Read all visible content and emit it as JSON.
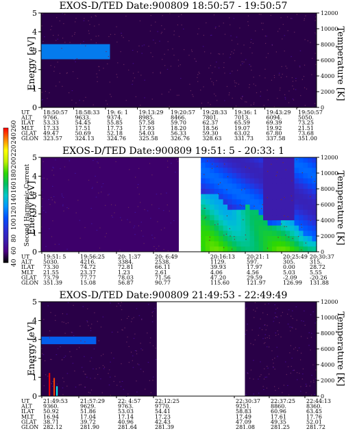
{
  "chart_data": [
    {
      "type": "heatmap",
      "title": "EXOS-D/TED   Date:900809  18:50:57 - 19:50:57",
      "ylabel": "Energy [eV]",
      "y2label": "Temperature [K]",
      "ylim": [
        0,
        5
      ],
      "y2lim": [
        0,
        12000
      ],
      "yticks": [
        "0",
        "1",
        "2",
        "3",
        "4",
        "5"
      ],
      "y2ticks": [
        "0",
        "2000",
        "4000",
        "6000",
        "8000",
        "10000",
        "12000"
      ],
      "data_segments": [
        [
          0,
          1
        ]
      ],
      "features": [
        {
          "type": "band",
          "x": [
            0.0,
            0.25
          ],
          "y": [
            2.55,
            3.35
          ],
          "level": 128
        }
      ],
      "background_level": 50,
      "ephemeris": {
        "labels": [
          "UT",
          "ALT",
          "ILAT",
          "MLT",
          "GLAT",
          "GLON"
        ],
        "columns": [
          [
            "18:50:57",
            "9766.",
            "53.33",
            "17.33",
            "49.47",
            "323.57"
          ],
          [
            "18:58:33",
            "9633.",
            "54.45",
            "17.51",
            "50.69",
            "324.13"
          ],
          [
            "19: 6: 1",
            "9374.",
            "55.85",
            "17.73",
            "52.18",
            "324.76"
          ],
          [
            "19:13:29",
            "8985.",
            "57.58",
            "17.93",
            "54.03",
            "325.58"
          ],
          [
            "19:20:57",
            "8466.",
            "59.70",
            "18.20",
            "56.33",
            "326.76"
          ],
          [
            "19:28:33",
            "7801.",
            "62.37",
            "18.56",
            "59.30",
            "328.63"
          ],
          [
            "19:36: 1",
            "7013.",
            "65.59",
            "19.07",
            "63.02",
            "331.73"
          ],
          [
            "19:43:29",
            "6094.",
            "69.39",
            "19.92",
            "67.80",
            "337.58"
          ],
          [
            "19:50:57",
            "5050.",
            "73.25",
            "21.51",
            "73.68",
            "351.00"
          ]
        ]
      }
    },
    {
      "type": "heatmap",
      "title": "EXOS-D/TED   Date:900809  19:51: 5 - 20:33: 1",
      "ylabel": "Energy [eV]",
      "y2label": "Temperature [K]",
      "ylim": [
        0,
        5
      ],
      "y2lim": [
        0,
        12000
      ],
      "yticks": [
        "0",
        "1",
        "2",
        "3",
        "4",
        "5"
      ],
      "y2ticks": [
        "0",
        "2000",
        "4000",
        "6000",
        "8000",
        "10000",
        "12000"
      ],
      "data_segments": [
        [
          0,
          0.5
        ],
        [
          0.58,
          1
        ]
      ],
      "background_level": 55,
      "ephemeris": {
        "labels": [
          "UT",
          "ALT",
          "ILAT",
          "MLT",
          "GLAT",
          "GLON"
        ],
        "columns": [
          [
            "19:51: 5",
            "5030.",
            "73.30",
            "21.55",
            "73.79",
            "351.39"
          ],
          [
            "19:56:25",
            "4216.",
            "74.72",
            "23.37",
            "77.77",
            "15.08"
          ],
          [
            "20: 1:37",
            "3384.",
            "72.81",
            "1.23",
            "78.03",
            "56.87"
          ],
          [
            "20: 6:49",
            "2538.",
            "66.11",
            "2.61",
            "71.56",
            "90.77"
          ],
          [
            "20:16:13",
            "1129.",
            "39.93",
            "4.06",
            "47.20",
            "115.60"
          ],
          [
            "20:21: 1",
            "597.",
            "17.97",
            "4.56",
            "29.59",
            "121.97"
          ],
          [
            "20:25:49",
            "305.",
            "0.00",
            "5.03",
            "-2.09",
            "126.99"
          ],
          [
            "20:30:37",
            "315.",
            "28.72",
            "5.55",
            "-20.26",
            "131.88"
          ]
        ]
      }
    },
    {
      "type": "heatmap",
      "title": "EXOS-D/TED   Date:900809  21:49:53 - 22:49:49",
      "ylabel": "Energy [eV]",
      "y2label": "Temperature [K]",
      "ylim": [
        0,
        5
      ],
      "y2lim": [
        0,
        12000
      ],
      "yticks": [
        "0",
        "1",
        "2",
        "3",
        "4",
        "5"
      ],
      "y2ticks": [
        "0",
        "2000",
        "4000",
        "6000",
        "8000",
        "10000",
        "12000"
      ],
      "data_segments": [
        [
          0,
          0.42
        ],
        [
          0.74,
          1
        ]
      ],
      "features": [
        {
          "type": "band",
          "x": [
            0.0,
            0.2
          ],
          "y": [
            2.75,
            3.15
          ],
          "level": 120
        }
      ],
      "background_level": 50,
      "ephemeris": {
        "labels": [
          "UT",
          "ALT",
          "ILAT",
          "MLT",
          "GLAT",
          "GLON"
        ],
        "columns": [
          [
            "21:49:53",
            "9360.",
            "50.92",
            "16.94",
            "38.71",
            "282.12"
          ],
          [
            "21:57:29",
            "9629.",
            "51.86",
            "17.04",
            "39.72",
            "281.90"
          ],
          [
            "22: 4:57",
            "9763.",
            "53.03",
            "17.14",
            "40.96",
            "281.64"
          ],
          [
            "22:12:25",
            "9770.",
            "54.41",
            "17.23",
            "42.43",
            "281.39"
          ],
          [
            "22:30:37",
            "9251.",
            "58.83",
            "17.49",
            "47.09",
            "281.08"
          ],
          [
            "22:37:25",
            "8860.",
            "60.96",
            "17.61",
            "49.35",
            "281.25"
          ],
          [
            "22:44:13",
            "8360.",
            "63.45",
            "17.76",
            "52.01",
            "281.72"
          ]
        ]
      }
    }
  ],
  "colorbar": {
    "title": "Second Harmonic Current",
    "range": [
      40,
      260
    ],
    "ticks": [
      "40",
      "60",
      "80",
      "100",
      "120",
      "140",
      "160",
      "180",
      "200",
      "220",
      "240",
      "260"
    ],
    "stops": [
      "#000000",
      "#4b0082",
      "#3a1fb0",
      "#2a2fd8",
      "#0050ff",
      "#0096ff",
      "#00c8c8",
      "#00c060",
      "#30d800",
      "#c0f000",
      "#ffff00",
      "#ff8000",
      "#ff0000"
    ]
  }
}
